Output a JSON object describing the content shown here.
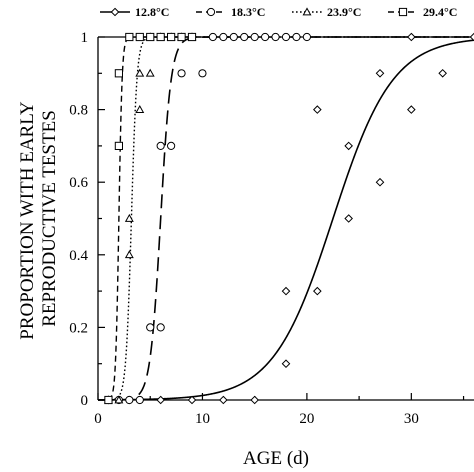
{
  "chart_data": {
    "type": "scatter",
    "title": "",
    "xlabel": "AGE (d)",
    "ylabel": [
      "PROPORTION WITH EARLY",
      "REPRODUCTIVE TESTES"
    ],
    "xlim": [
      0,
      36
    ],
    "ylim": [
      0,
      1
    ],
    "x_ticks": [
      0,
      10,
      20,
      30
    ],
    "y_ticks": [
      0,
      0.2,
      0.4,
      0.6,
      0.8,
      1
    ],
    "y_tick_labels": [
      "0",
      "0.2",
      "0.4",
      "0.6",
      "0.8",
      "1"
    ],
    "grid": false,
    "legend_position": "top",
    "series": [
      {
        "name": "12.8°C",
        "marker": "diamond",
        "line_style": "solid",
        "curve": {
          "midpoint": 22.5,
          "slope": 0.35
        },
        "points": [
          {
            "x": 1,
            "y": 0
          },
          {
            "x": 3,
            "y": 0
          },
          {
            "x": 6,
            "y": 0
          },
          {
            "x": 9,
            "y": 0
          },
          {
            "x": 12,
            "y": 0
          },
          {
            "x": 15,
            "y": 0
          },
          {
            "x": 18,
            "y": 0.1
          },
          {
            "x": 18,
            "y": 0.3
          },
          {
            "x": 21,
            "y": 0.3
          },
          {
            "x": 21,
            "y": 0.8
          },
          {
            "x": 24,
            "y": 0.5
          },
          {
            "x": 24,
            "y": 0.7
          },
          {
            "x": 27,
            "y": 0.6
          },
          {
            "x": 27,
            "y": 0.9
          },
          {
            "x": 30,
            "y": 0.8
          },
          {
            "x": 30,
            "y": 1
          },
          {
            "x": 33,
            "y": 0.9
          },
          {
            "x": 36,
            "y": 1
          }
        ]
      },
      {
        "name": "18.3°C",
        "marker": "circle",
        "line_style": "long-dash",
        "curve": {
          "midpoint": 6.0,
          "slope": 2.0
        },
        "points": [
          {
            "x": 1,
            "y": 0
          },
          {
            "x": 2,
            "y": 0
          },
          {
            "x": 3,
            "y": 0
          },
          {
            "x": 4,
            "y": 0
          },
          {
            "x": 5,
            "y": 0.2
          },
          {
            "x": 6,
            "y": 0.2
          },
          {
            "x": 6,
            "y": 0.7
          },
          {
            "x": 7,
            "y": 0.7
          },
          {
            "x": 8,
            "y": 0.9
          },
          {
            "x": 10,
            "y": 0.9
          },
          {
            "x": 11,
            "y": 1
          },
          {
            "x": 12,
            "y": 1
          },
          {
            "x": 13,
            "y": 1
          },
          {
            "x": 14,
            "y": 1
          },
          {
            "x": 15,
            "y": 1
          },
          {
            "x": 16,
            "y": 1
          },
          {
            "x": 17,
            "y": 1
          },
          {
            "x": 18,
            "y": 1
          },
          {
            "x": 19,
            "y": 1
          },
          {
            "x": 20,
            "y": 1
          }
        ]
      },
      {
        "name": "23.9°C",
        "marker": "triangle",
        "line_style": "dotted",
        "curve": {
          "midpoint": 3.2,
          "slope": 3.8
        },
        "points": [
          {
            "x": 1,
            "y": 0
          },
          {
            "x": 2,
            "y": 0
          },
          {
            "x": 3,
            "y": 0.4
          },
          {
            "x": 3,
            "y": 0.5
          },
          {
            "x": 4,
            "y": 0.8
          },
          {
            "x": 4,
            "y": 0.9
          },
          {
            "x": 5,
            "y": 0.9
          },
          {
            "x": 5,
            "y": 1
          },
          {
            "x": 6,
            "y": 1
          },
          {
            "x": 7,
            "y": 1
          },
          {
            "x": 8,
            "y": 1
          },
          {
            "x": 9,
            "y": 1
          }
        ]
      },
      {
        "name": "29.4°C",
        "marker": "square",
        "line_style": "short-dash",
        "curve": {
          "midpoint": 2.0,
          "slope": 6.5
        },
        "points": [
          {
            "x": 1,
            "y": 0
          },
          {
            "x": 2,
            "y": 0.7
          },
          {
            "x": 2,
            "y": 0.9
          },
          {
            "x": 3,
            "y": 1
          },
          {
            "x": 4,
            "y": 1
          },
          {
            "x": 5,
            "y": 1
          },
          {
            "x": 6,
            "y": 1
          },
          {
            "x": 7,
            "y": 1
          },
          {
            "x": 8,
            "y": 1
          },
          {
            "x": 9,
            "y": 1
          }
        ]
      }
    ]
  }
}
